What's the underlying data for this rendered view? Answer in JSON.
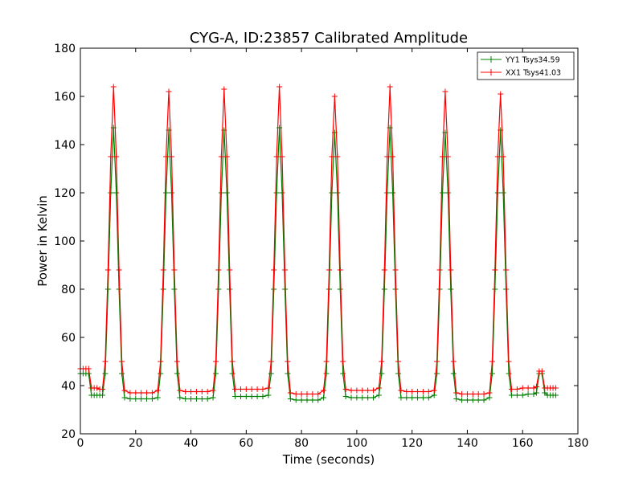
{
  "chart_data": {
    "type": "line",
    "title": "CYG-A, ID:23857 Calibrated Amplitude",
    "xlabel": "Time (seconds)",
    "ylabel": "Power in Kelvin",
    "xlim": [
      0,
      180
    ],
    "ylim": [
      20,
      180
    ],
    "xticks": [
      0,
      20,
      40,
      60,
      80,
      100,
      120,
      140,
      160,
      180
    ],
    "yticks": [
      20,
      40,
      60,
      80,
      100,
      120,
      140,
      160,
      180
    ],
    "grid": false,
    "legend_position": "top-right",
    "series": [
      {
        "name": "YY1 Tsys34.59",
        "color": "#008000",
        "marker": "plus",
        "x": [
          0,
          1,
          2,
          3,
          4,
          5,
          6,
          7,
          8,
          9,
          10,
          11,
          12,
          13,
          14,
          15,
          16,
          18,
          20,
          22,
          24,
          26,
          28,
          29,
          30,
          31,
          32,
          33,
          34,
          35,
          36,
          38,
          40,
          42,
          44,
          46,
          48,
          49,
          50,
          51,
          52,
          53,
          54,
          55,
          56,
          58,
          60,
          62,
          64,
          66,
          68,
          69,
          70,
          71,
          72,
          73,
          74,
          75,
          76,
          78,
          80,
          82,
          84,
          86,
          88,
          89,
          90,
          91,
          92,
          93,
          94,
          95,
          96,
          98,
          100,
          102,
          104,
          106,
          108,
          109,
          110,
          111,
          112,
          113,
          114,
          115,
          116,
          118,
          120,
          122,
          124,
          126,
          128,
          129,
          130,
          131,
          132,
          133,
          134,
          135,
          136,
          138,
          140,
          142,
          144,
          146,
          148,
          149,
          150,
          151,
          152,
          153,
          154,
          155,
          156,
          158,
          160,
          162,
          164,
          165,
          166,
          167,
          168,
          169,
          170,
          171,
          172
        ],
        "values": [
          45,
          45,
          45,
          45,
          36,
          36,
          36,
          36,
          36,
          45,
          80,
          120,
          147,
          120,
          80,
          45,
          35,
          34.5,
          34.5,
          34.5,
          34.5,
          34.5,
          35,
          45,
          80,
          120,
          146,
          120,
          80,
          45,
          35,
          34.5,
          34.5,
          34.5,
          34.5,
          34.5,
          35,
          45,
          80,
          120,
          146,
          120,
          80,
          45,
          35.5,
          35.5,
          35.5,
          35.5,
          35.5,
          35.5,
          36,
          45,
          80,
          120,
          147,
          120,
          80,
          45,
          34.5,
          34,
          34,
          34,
          34,
          34,
          35,
          45,
          80,
          120,
          145,
          120,
          80,
          45,
          35.5,
          35,
          35,
          35,
          35,
          35,
          36,
          45,
          80,
          120,
          147,
          120,
          80,
          45,
          35,
          35,
          35,
          35,
          35,
          35,
          36,
          45,
          80,
          120,
          145,
          120,
          80,
          45,
          34.5,
          34,
          34,
          34,
          34,
          34,
          35,
          45,
          80,
          120,
          146,
          120,
          80,
          45,
          36,
          36,
          36,
          36.5,
          36.5,
          37,
          45,
          45,
          37,
          36,
          36,
          36,
          36
        ]
      },
      {
        "name": "XX1 Tsys41.03",
        "color": "#ff0000",
        "marker": "plus",
        "x": [
          0,
          1,
          2,
          3,
          4,
          5,
          6,
          7,
          8,
          9,
          10,
          11,
          12,
          13,
          14,
          15,
          16,
          18,
          20,
          22,
          24,
          26,
          28,
          29,
          30,
          31,
          32,
          33,
          34,
          35,
          36,
          38,
          40,
          42,
          44,
          46,
          48,
          49,
          50,
          51,
          52,
          53,
          54,
          55,
          56,
          58,
          60,
          62,
          64,
          66,
          68,
          69,
          70,
          71,
          72,
          73,
          74,
          75,
          76,
          78,
          80,
          82,
          84,
          86,
          88,
          89,
          90,
          91,
          92,
          93,
          94,
          95,
          96,
          98,
          100,
          102,
          104,
          106,
          108,
          109,
          110,
          111,
          112,
          113,
          114,
          115,
          116,
          118,
          120,
          122,
          124,
          126,
          128,
          129,
          130,
          131,
          132,
          133,
          134,
          135,
          136,
          138,
          140,
          142,
          144,
          146,
          148,
          149,
          150,
          151,
          152,
          153,
          154,
          155,
          156,
          158,
          160,
          162,
          164,
          165,
          166,
          167,
          168,
          169,
          170,
          171,
          172
        ],
        "values": [
          47,
          47,
          47,
          47,
          39,
          39,
          39,
          38.5,
          38.5,
          50,
          88,
          135,
          164,
          135,
          88,
          50,
          38,
          37,
          37,
          37,
          37,
          37,
          38,
          50,
          88,
          135,
          162,
          135,
          88,
          50,
          38,
          37.5,
          37.5,
          37.5,
          37.5,
          37.5,
          38,
          50,
          88,
          135,
          163,
          135,
          88,
          50,
          38.5,
          38.5,
          38.5,
          38.5,
          38.5,
          38.5,
          39,
          50,
          88,
          135,
          164,
          135,
          88,
          50,
          37,
          36.5,
          36.5,
          36.5,
          36.5,
          36.5,
          38,
          50,
          88,
          135,
          160,
          135,
          88,
          50,
          38.5,
          38,
          38,
          38,
          38,
          38,
          39,
          50,
          88,
          135,
          164,
          135,
          88,
          50,
          38,
          37.5,
          37.5,
          37.5,
          37.5,
          37.5,
          38,
          50,
          88,
          135,
          162,
          135,
          88,
          50,
          37,
          36.5,
          36.5,
          36.5,
          36.5,
          36.5,
          37,
          50,
          88,
          135,
          161,
          135,
          88,
          50,
          38.5,
          38.5,
          39,
          39,
          39,
          39.5,
          46,
          46,
          39,
          39,
          39,
          39,
          39
        ]
      }
    ]
  }
}
